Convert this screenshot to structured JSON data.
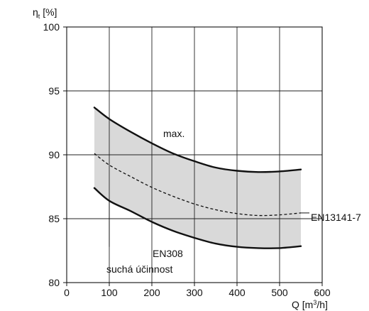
{
  "chart_data": {
    "type": "area",
    "xlabel": "Q [m³/h]",
    "ylabel": "ηt [%]",
    "xlim": [
      0,
      600
    ],
    "ylim": [
      80,
      100
    ],
    "xticks": [
      0,
      100,
      200,
      300,
      400,
      500,
      600
    ],
    "yticks": [
      80,
      85,
      90,
      95,
      100
    ],
    "grid": true,
    "fill_color": "#d9d9d9",
    "series": [
      {
        "name": "max.",
        "style": "solid",
        "x": [
          65,
          100,
          150,
          200,
          250,
          300,
          350,
          400,
          450,
          500,
          550
        ],
        "y": [
          93.7,
          92.8,
          91.8,
          90.9,
          90.1,
          89.5,
          89.0,
          88.75,
          88.65,
          88.7,
          88.85
        ]
      },
      {
        "name": "EN13141-7",
        "style": "dashed",
        "x": [
          65,
          100,
          150,
          200,
          250,
          300,
          350,
          400,
          450,
          500,
          550
        ],
        "y": [
          90.1,
          89.2,
          88.3,
          87.45,
          86.75,
          86.15,
          85.7,
          85.4,
          85.25,
          85.3,
          85.45
        ]
      },
      {
        "name": "EN308 suchá účinnost",
        "style": "solid",
        "x": [
          65,
          100,
          150,
          200,
          250,
          300,
          350,
          400,
          450,
          500,
          550
        ],
        "y": [
          87.4,
          86.4,
          85.6,
          84.75,
          84.05,
          83.5,
          83.05,
          82.8,
          82.7,
          82.7,
          82.85
        ]
      }
    ],
    "annotations": {
      "max": "max.",
      "en13141": "EN13141-7",
      "en308_line1": "EN308",
      "en308_line2": "suchá účinnost"
    }
  }
}
